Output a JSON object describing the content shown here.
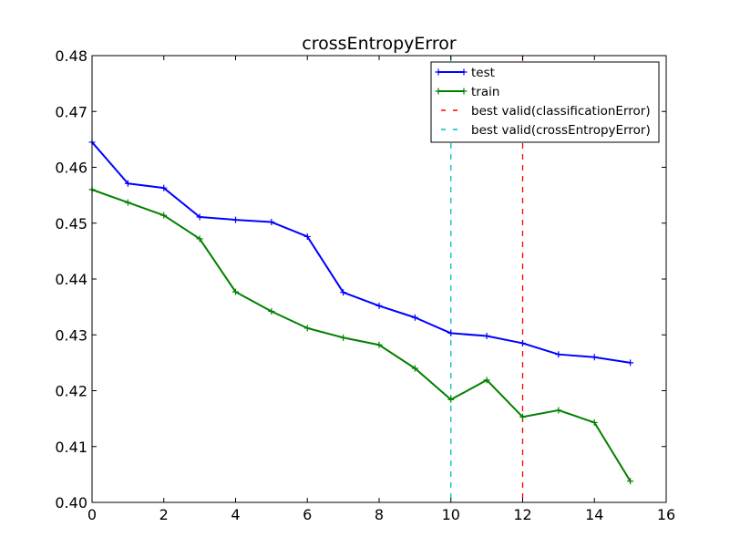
{
  "chart_data": {
    "type": "line",
    "title": "crossEntropyError",
    "xlabel": "",
    "ylabel": "",
    "xlim": [
      0,
      16
    ],
    "ylim": [
      0.4,
      0.48
    ],
    "x_ticks": [
      "0",
      "2",
      "4",
      "6",
      "8",
      "10",
      "12",
      "14",
      "16"
    ],
    "y_ticks": [
      "0.40",
      "0.41",
      "0.42",
      "0.43",
      "0.44",
      "0.45",
      "0.46",
      "0.47",
      "0.48"
    ],
    "grid": false,
    "legend_position": "top-right",
    "x": [
      0,
      1,
      2,
      3,
      4,
      5,
      6,
      7,
      8,
      9,
      10,
      11,
      12,
      13,
      14,
      15
    ],
    "series": [
      {
        "name": "test",
        "color": "#0000ff",
        "marker": "+",
        "values": [
          0.4645,
          0.4571,
          0.4563,
          0.4511,
          0.4506,
          0.4502,
          0.4476,
          0.4376,
          0.4352,
          0.4331,
          0.4303,
          0.4298,
          0.4285,
          0.4265,
          0.426,
          0.425
        ]
      },
      {
        "name": "train",
        "color": "#008000",
        "marker": "+",
        "values": [
          0.456,
          0.4537,
          0.4514,
          0.4472,
          0.4377,
          0.4342,
          0.4312,
          0.4295,
          0.4282,
          0.424,
          0.4184,
          0.4219,
          0.4153,
          0.4165,
          0.4143,
          0.4038
        ]
      }
    ],
    "vlines": [
      {
        "name": "best valid(classificationError)",
        "x": 12,
        "color": "#ff0000",
        "style": "dashed"
      },
      {
        "name": "best valid(crossEntropyError)",
        "x": 10,
        "color": "#00bfbf",
        "style": "dashed"
      }
    ]
  }
}
